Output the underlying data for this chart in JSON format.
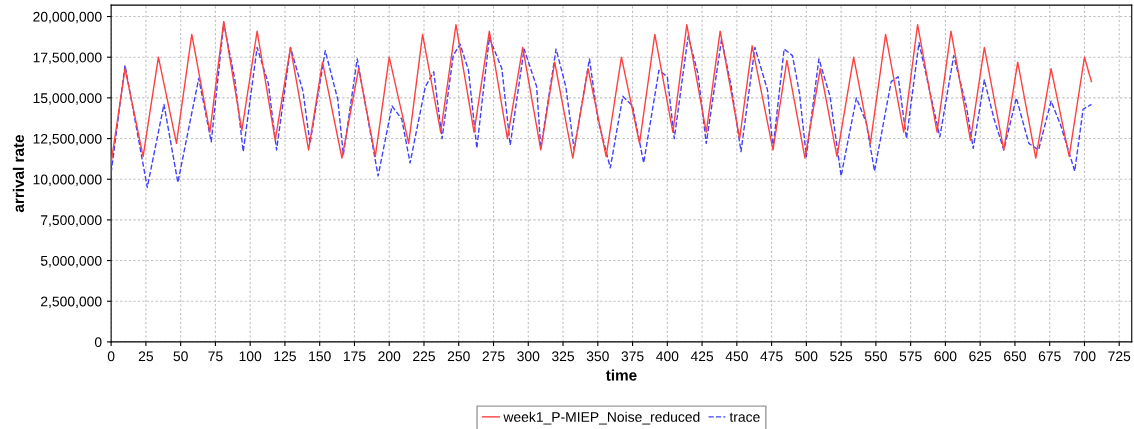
{
  "chart_data": {
    "type": "line",
    "xlabel": "time",
    "ylabel": "arrival rate",
    "xlim": [
      0,
      734
    ],
    "ylim": [
      0,
      20700000
    ],
    "xticks": [
      0,
      25,
      50,
      75,
      100,
      125,
      150,
      175,
      200,
      225,
      250,
      275,
      300,
      325,
      350,
      375,
      400,
      425,
      450,
      475,
      500,
      525,
      550,
      575,
      600,
      625,
      650,
      675,
      700,
      725
    ],
    "yticks": [
      {
        "value": 0,
        "label": "0"
      },
      {
        "value": 2500000,
        "label": "2,500,000"
      },
      {
        "value": 5000000,
        "label": "5,000,000"
      },
      {
        "value": 7500000,
        "label": "7,500,000"
      },
      {
        "value": 10000000,
        "label": "10,000,000"
      },
      {
        "value": 12500000,
        "label": "12,500,000"
      },
      {
        "value": 15000000,
        "label": "15,000,000"
      },
      {
        "value": 17500000,
        "label": "17,500,000"
      },
      {
        "value": 20000000,
        "label": "20,000,000"
      }
    ],
    "grid": true,
    "legend": "bottom",
    "series": [
      {
        "name": "week1_P-MIEP_Noise_reduced",
        "color": "#ff4040",
        "line_style": "solid",
        "x": [
          0,
          10,
          23,
          34,
          47,
          58,
          71,
          81,
          94,
          105,
          118,
          129,
          142,
          152,
          166,
          178,
          190,
          200,
          214,
          224,
          237,
          248,
          261,
          272,
          285,
          296,
          309,
          319,
          332,
          343,
          356,
          367,
          380,
          391,
          404,
          414,
          428,
          438,
          452,
          461,
          476,
          486,
          499,
          510,
          522,
          534,
          546,
          557,
          570,
          580,
          594,
          604,
          618,
          628,
          642,
          652,
          665,
          676,
          689,
          700,
          705
        ],
        "values": [
          11000000,
          16800000,
          11400000,
          17500000,
          12200000,
          18900000,
          12900000,
          19700000,
          13000000,
          19100000,
          12400000,
          18100000,
          11800000,
          17200000,
          11300000,
          16800000,
          11400000,
          17500000,
          12200000,
          18900000,
          12900000,
          19500000,
          12900000,
          19100000,
          12500000,
          18100000,
          11800000,
          17200000,
          11300000,
          16800000,
          11400000,
          17500000,
          12200000,
          18900000,
          12900000,
          19500000,
          12900000,
          19100000,
          12500000,
          18200000,
          11800000,
          17300000,
          11300000,
          16800000,
          11400000,
          17500000,
          12200000,
          18900000,
          12900000,
          19500000,
          12900000,
          19100000,
          12400000,
          18100000,
          11800000,
          17200000,
          11300000,
          16800000,
          11400000,
          17500000,
          16000000
        ]
      },
      {
        "name": "trace",
        "color": "#4040ff",
        "line_style": "dashed",
        "x": [
          0,
          10,
          26,
          38,
          48,
          63,
          72,
          81,
          89,
          95,
          105,
          113,
          119,
          129,
          138,
          143,
          154,
          163,
          167,
          177,
          192,
          202,
          209,
          215,
          226,
          232,
          238,
          246,
          251,
          257,
          263,
          272,
          281,
          287,
          297,
          306,
          309,
          320,
          327,
          333,
          344,
          350,
          359,
          368,
          375,
          383,
          394,
          400,
          405,
          415,
          422,
          428,
          439,
          446,
          453,
          463,
          472,
          476,
          484,
          490,
          495,
          500,
          509,
          517,
          525,
          536,
          543,
          549,
          561,
          566,
          572,
          581,
          588,
          596,
          606,
          615,
          620,
          628,
          635,
          642,
          651,
          660,
          667,
          676,
          683,
          693,
          699,
          705
        ],
        "values": [
          10400000,
          17000000,
          9500000,
          14600000,
          9800000,
          16200000,
          12300000,
          19600000,
          16100000,
          11700000,
          18100000,
          15900000,
          11800000,
          18100000,
          15400000,
          12200000,
          17900000,
          14900000,
          11500000,
          17400000,
          10200000,
          14500000,
          13700000,
          11000000,
          15700000,
          16600000,
          12500000,
          17600000,
          18300000,
          16700000,
          11900000,
          18700000,
          16800000,
          12100000,
          18000000,
          15700000,
          11900000,
          18000000,
          15700000,
          11800000,
          17400000,
          13700000,
          10700000,
          15100000,
          14500000,
          11000000,
          16700000,
          16300000,
          12500000,
          18800000,
          16500000,
          12200000,
          18600000,
          15700000,
          11700000,
          18100000,
          15500000,
          11900000,
          18000000,
          17600000,
          15300000,
          11400000,
          17400000,
          15100000,
          10200000,
          15000000,
          13500000,
          10500000,
          16000000,
          16300000,
          12500000,
          18400000,
          15700000,
          12600000,
          17600000,
          14500000,
          11900000,
          16100000,
          13700000,
          11800000,
          15000000,
          12200000,
          11800000,
          14800000,
          13300000,
          10500000,
          14300000,
          14600000
        ]
      }
    ]
  }
}
